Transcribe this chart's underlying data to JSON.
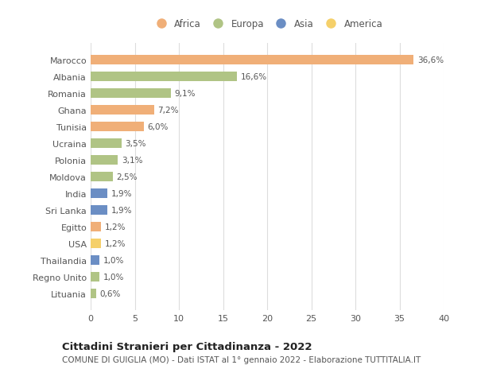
{
  "countries": [
    "Marocco",
    "Albania",
    "Romania",
    "Ghana",
    "Tunisia",
    "Ucraina",
    "Polonia",
    "Moldova",
    "India",
    "Sri Lanka",
    "Egitto",
    "USA",
    "Thailandia",
    "Regno Unito",
    "Lituania"
  ],
  "values": [
    36.6,
    16.6,
    9.1,
    7.2,
    6.0,
    3.5,
    3.1,
    2.5,
    1.9,
    1.9,
    1.2,
    1.2,
    1.0,
    1.0,
    0.6
  ],
  "labels": [
    "36,6%",
    "16,6%",
    "9,1%",
    "7,2%",
    "6,0%",
    "3,5%",
    "3,1%",
    "2,5%",
    "1,9%",
    "1,9%",
    "1,2%",
    "1,2%",
    "1,0%",
    "1,0%",
    "0,6%"
  ],
  "continents": [
    "Africa",
    "Europa",
    "Europa",
    "Africa",
    "Africa",
    "Europa",
    "Europa",
    "Europa",
    "Asia",
    "Asia",
    "Africa",
    "America",
    "Asia",
    "Europa",
    "Europa"
  ],
  "continent_colors": {
    "Africa": "#F0AF78",
    "Europa": "#B0C485",
    "Asia": "#6B8EC4",
    "America": "#F5D06A"
  },
  "legend_items": [
    "Africa",
    "Europa",
    "Asia",
    "America"
  ],
  "legend_colors": [
    "#F0AF78",
    "#B0C485",
    "#6B8EC4",
    "#F5D06A"
  ],
  "xlim": [
    0,
    40
  ],
  "xticks": [
    0,
    5,
    10,
    15,
    20,
    25,
    30,
    35,
    40
  ],
  "title": "Cittadini Stranieri per Cittadinanza - 2022",
  "subtitle": "COMUNE DI GUIGLIA (MO) - Dati ISTAT al 1° gennaio 2022 - Elaborazione TUTTITALIA.IT",
  "background_color": "#ffffff",
  "grid_color": "#dddddd",
  "bar_height": 0.55,
  "label_fontsize": 7.5,
  "tick_fontsize": 8,
  "title_fontsize": 9.5,
  "subtitle_fontsize": 7.5,
  "text_color": "#555555",
  "title_color": "#222222"
}
